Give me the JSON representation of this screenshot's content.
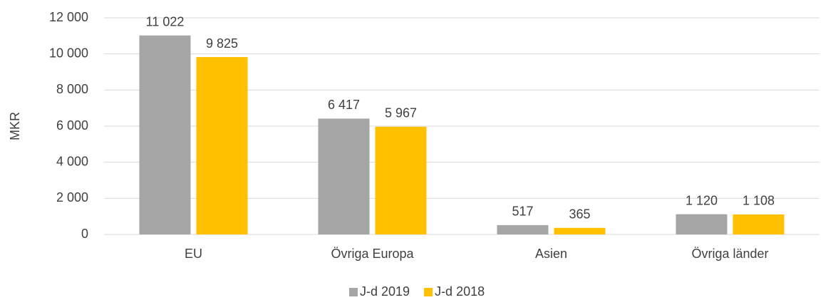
{
  "chart_data": {
    "type": "bar",
    "y_label": "MKR",
    "categories": [
      "EU",
      "Övriga Europa",
      "Asien",
      "Övriga länder"
    ],
    "series": [
      {
        "name": "J-d 2019",
        "color": "#a5a5a5",
        "values": [
          11022,
          6417,
          517,
          1120
        ],
        "value_labels": [
          "11 022",
          "6 417",
          "517",
          "1 120"
        ]
      },
      {
        "name": "J-d 2018",
        "color": "#ffc000",
        "values": [
          9825,
          5967,
          365,
          1108
        ],
        "value_labels": [
          "9 825",
          "5 967",
          "365",
          "1 108"
        ]
      }
    ],
    "ylim": [
      0,
      12000
    ],
    "yticks": [
      0,
      {
        "value": 2000,
        "label": "2 000"
      },
      {
        "value": 4000,
        "label": "4 000"
      },
      {
        "value": 6000,
        "label": "6 000"
      },
      {
        "value": 8000,
        "label": "8 000"
      },
      {
        "value": 10000,
        "label": "10 000"
      },
      {
        "value": 12000,
        "label": "12 000"
      }
    ],
    "grid": true,
    "legend": "bottom"
  }
}
